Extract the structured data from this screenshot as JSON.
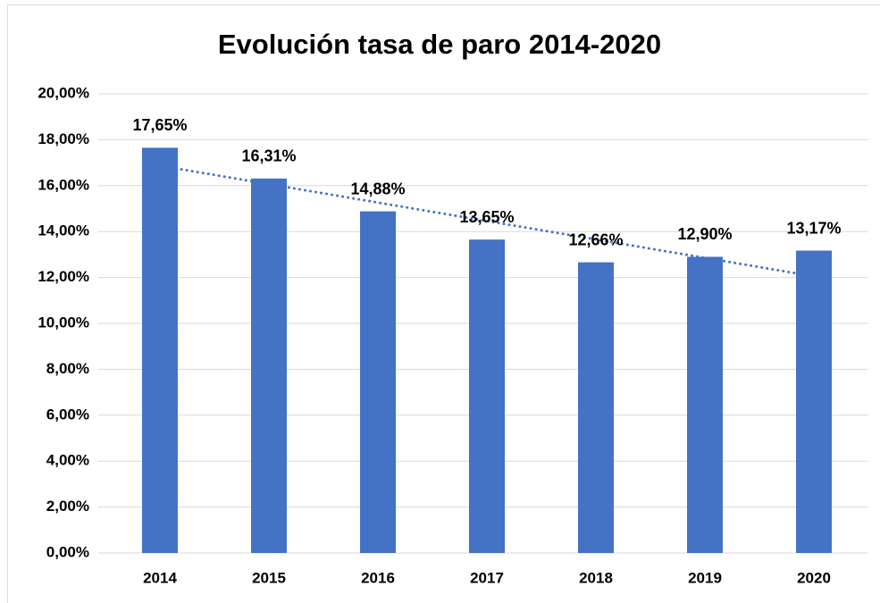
{
  "chart_data": {
    "type": "bar",
    "title": "Evolución tasa de paro 2014-2020",
    "categories": [
      "2014",
      "2015",
      "2016",
      "2017",
      "2018",
      "2019",
      "2020"
    ],
    "values": [
      17.65,
      16.31,
      14.88,
      13.65,
      12.66,
      12.9,
      13.17
    ],
    "value_labels": [
      "17,65%",
      "16,31%",
      "14,88%",
      "13,65%",
      "12,66%",
      "12,90%",
      "13,17%"
    ],
    "color": "#4472c4",
    "ylim": [
      0,
      20
    ],
    "yticks": [
      {
        "value": 0,
        "label": "0,00%"
      },
      {
        "value": 2,
        "label": "2,00%"
      },
      {
        "value": 4,
        "label": "4,00%"
      },
      {
        "value": 6,
        "label": "6,00%"
      },
      {
        "value": 8,
        "label": "8,00%"
      },
      {
        "value": 10,
        "label": "10,00%"
      },
      {
        "value": 12,
        "label": "12,00%"
      },
      {
        "value": 14,
        "label": "14,00%"
      },
      {
        "value": 16,
        "label": "16,00%"
      },
      {
        "value": 18,
        "label": "18,00%"
      },
      {
        "value": 20,
        "label": "20,00%"
      }
    ],
    "grid": true,
    "trendline": "linear"
  }
}
